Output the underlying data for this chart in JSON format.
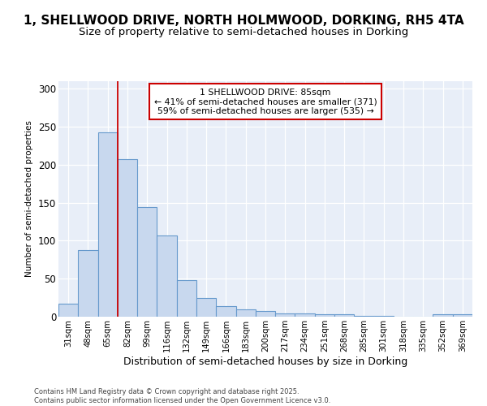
{
  "title": "1, SHELLWOOD DRIVE, NORTH HOLMWOOD, DORKING, RH5 4TA",
  "subtitle": "Size of property relative to semi-detached houses in Dorking",
  "xlabel": "Distribution of semi-detached houses by size in Dorking",
  "ylabel": "Number of semi-detached properties",
  "categories": [
    "31sqm",
    "48sqm",
    "65sqm",
    "82sqm",
    "99sqm",
    "116sqm",
    "132sqm",
    "149sqm",
    "166sqm",
    "183sqm",
    "200sqm",
    "217sqm",
    "234sqm",
    "251sqm",
    "268sqm",
    "285sqm",
    "301sqm",
    "318sqm",
    "335sqm",
    "352sqm",
    "369sqm"
  ],
  "values": [
    17,
    88,
    243,
    207,
    144,
    107,
    48,
    25,
    14,
    10,
    8,
    4,
    4,
    3,
    3,
    1,
    1,
    0,
    0,
    3,
    3
  ],
  "bar_color": "#c8d8ee",
  "bar_edge_color": "#6699cc",
  "vline_x_index": 3,
  "vline_color": "#cc0000",
  "annotation_text": "1 SHELLWOOD DRIVE: 85sqm\n← 41% of semi-detached houses are smaller (371)\n59% of semi-detached houses are larger (535) →",
  "annotation_box_facecolor": "#ffffff",
  "annotation_box_edgecolor": "#cc0000",
  "footer_line1": "Contains HM Land Registry data © Crown copyright and database right 2025.",
  "footer_line2": "Contains public sector information licensed under the Open Government Licence v3.0.",
  "ylim": [
    0,
    310
  ],
  "yticks": [
    0,
    50,
    100,
    150,
    200,
    250,
    300
  ],
  "background_color": "#ffffff",
  "plot_bg_color": "#e8eef8",
  "title_fontsize": 11,
  "subtitle_fontsize": 9.5
}
